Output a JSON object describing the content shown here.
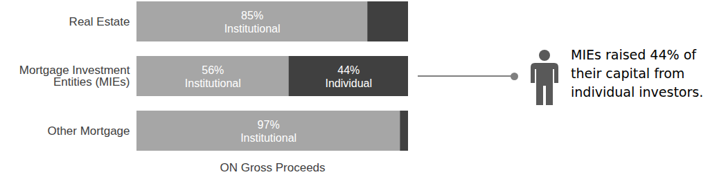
{
  "chart_data": {
    "type": "bar",
    "orientation": "horizontal",
    "stacked": true,
    "categories": [
      "Real Estate",
      "Mortgage Investment Entities (MIEs)",
      "Other Mortgage"
    ],
    "series": [
      {
        "name": "Institutional",
        "color": "#a6a6a6",
        "values": [
          85,
          56,
          97
        ],
        "value_labels": [
          "85%",
          "56%",
          "97%"
        ]
      },
      {
        "name": "Individual",
        "color": "#404040",
        "values": [
          15,
          44,
          3
        ],
        "value_labels": [
          null,
          "44%",
          null
        ]
      }
    ],
    "xlabel": "ON Gross Proceeds",
    "xlim": [
      0,
      100
    ],
    "xticks": [],
    "data_labels": true,
    "tick_labels": "y",
    "annotations": [
      "MIEs raised 44% of their capital from individual investors."
    ]
  }
}
